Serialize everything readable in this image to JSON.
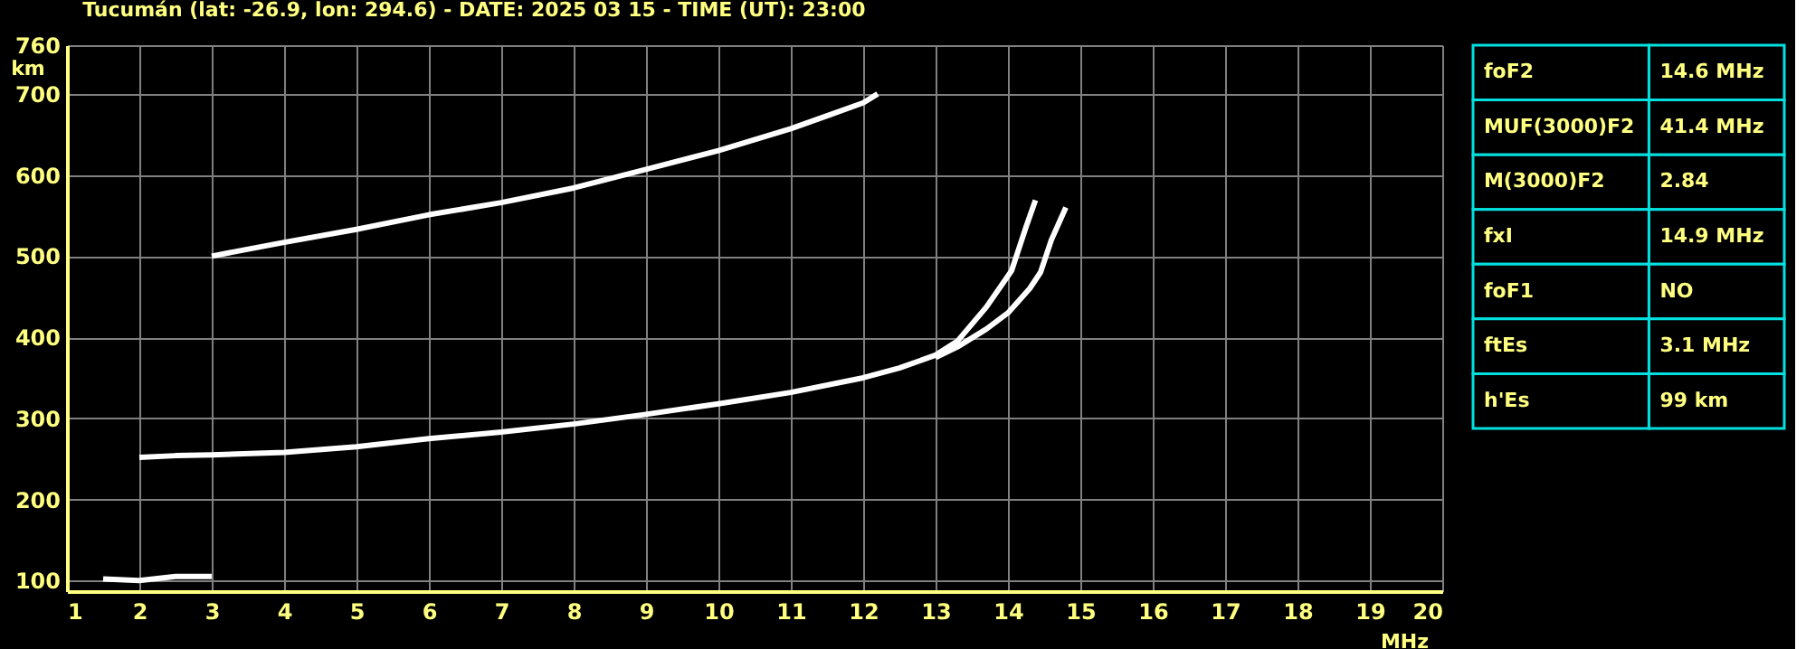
{
  "chart_data": [
    {
      "type": "line",
      "title": "Tucumán (lat: -26.9, lon: 294.6) - DATE: 2025 03 15 - TIME (UT): 23:00",
      "xlabel": "MHz",
      "ylabel": "km",
      "xlim": [
        1,
        20
      ],
      "ylim": [
        87,
        760
      ],
      "xticks": [
        1,
        2,
        3,
        4,
        5,
        6,
        7,
        8,
        9,
        10,
        11,
        12,
        13,
        14,
        15,
        16,
        17,
        18,
        19,
        20
      ],
      "yticks": [
        100,
        200,
        300,
        400,
        500,
        600,
        700,
        760
      ],
      "grid": true,
      "legend": false,
      "marker": "none",
      "line_style": "solid",
      "series": [
        {
          "color": "#ffffff",
          "x": [
            2.0,
            2.5,
            3,
            4,
            5,
            6,
            7,
            8,
            9,
            10,
            11,
            12,
            12.5,
            13,
            13.3,
            13.7,
            14.05,
            14.25,
            14.38
          ],
          "values": [
            252,
            254,
            255,
            258,
            265,
            275,
            283,
            293,
            305,
            318,
            332,
            350,
            362,
            378,
            395,
            437,
            482,
            536,
            569
          ]
        },
        {
          "color": "#ffffff",
          "x": [
            13,
            13.3,
            13.7,
            14,
            14.3,
            14.45,
            14.6,
            14.8
          ],
          "values": [
            375,
            388,
            410,
            430,
            460,
            480,
            520,
            560
          ]
        },
        {
          "color": "#ffffff",
          "x": [
            3,
            4,
            5,
            6,
            7,
            8,
            9,
            10,
            11,
            11.5,
            12,
            12.2
          ],
          "values": [
            500,
            517,
            533,
            551,
            566,
            584,
            607,
            630,
            657,
            673,
            689,
            700
          ]
        },
        {
          "color": "#ffffff",
          "x": [
            1.5,
            2,
            2.5,
            3
          ],
          "values": [
            102,
            100,
            105,
            105
          ]
        }
      ]
    },
    {
      "type": "other",
      "annotations": [
        "foF2",
        "14.6 MHz",
        "MUF(3000)F2",
        "41.4 MHz",
        "M(3000)F2",
        "2.84",
        "fxI",
        "14.9 MHz",
        "foF1",
        "NO",
        "ftEs",
        "3.1 MHz",
        "h'Es",
        "99 km"
      ]
    }
  ]
}
